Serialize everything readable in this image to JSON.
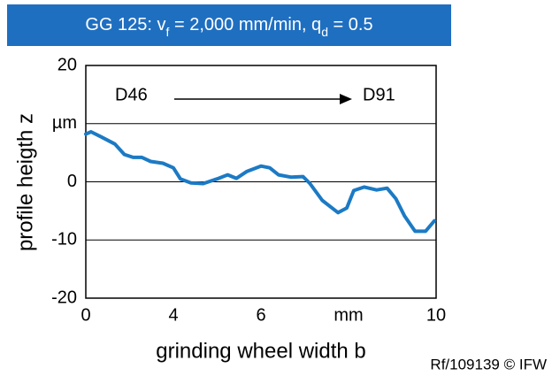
{
  "chart_data": {
    "type": "line",
    "title_parts": [
      "GG 125: v",
      "f",
      " = 2,000 mm/min, q",
      "d",
      " = 0.5"
    ],
    "xlabel": "grinding wheel width b",
    "ylabel": "profile heigth z",
    "annotations": [
      "D46",
      "D91"
    ],
    "footnote": "Rf/109139 © IFW",
    "xlim": [
      0,
      10
    ],
    "ylim": [
      -20,
      20
    ],
    "xticks": [
      0,
      {
        "value": 2.5,
        "label": "4"
      },
      {
        "value": 5,
        "label": "6"
      },
      {
        "value": 7.5,
        "label": "mm"
      },
      10
    ],
    "yticks": [
      20,
      {
        "value": 10,
        "label": "µm"
      },
      0,
      -10,
      -20
    ],
    "grid": true,
    "color": "#1c7ac4",
    "x": [
      0,
      0.15,
      0.45,
      0.83,
      1.1,
      1.35,
      1.6,
      1.85,
      2.2,
      2.5,
      2.7,
      3.0,
      3.35,
      3.75,
      4.05,
      4.3,
      4.6,
      5.0,
      5.25,
      5.5,
      5.85,
      6.2,
      6.4,
      6.75,
      7.2,
      7.45,
      7.65,
      7.95,
      8.3,
      8.6,
      8.85,
      9.1,
      9.4,
      9.7,
      9.95
    ],
    "values": [
      8.2,
      8.6,
      7.7,
      6.5,
      4.7,
      4.2,
      4.2,
      3.5,
      3.2,
      2.4,
      0.5,
      -0.2,
      -0.3,
      0.5,
      1.2,
      0.6,
      1.8,
      2.7,
      2.4,
      1.2,
      0.8,
      0.9,
      -0.3,
      -3.2,
      -5.3,
      -4.5,
      -1.5,
      -0.9,
      -1.4,
      -1.1,
      -2.9,
      -5.9,
      -8.5,
      -8.5,
      -6.7
    ]
  }
}
